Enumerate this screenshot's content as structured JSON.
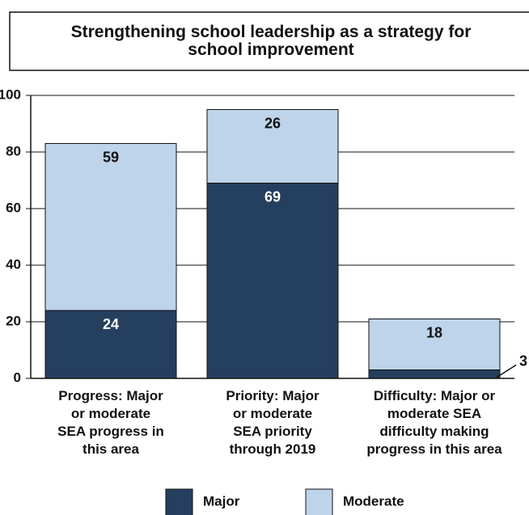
{
  "chart_data": {
    "type": "stacked_bar",
    "title": "Strengthening school leadership as a strategy for\nschool improvement",
    "categories": [
      "Progress: Major\nor moderate\nSEA progress in\nthis area",
      "Priority: Major\nor moderate\nSEA priority\nthrough 2019",
      "Difficulty: Major or\nmoderate SEA\ndifficulty making\nprogress in this area"
    ],
    "series": [
      {
        "name": "Major",
        "color": "#253f5e",
        "values": [
          24,
          69,
          3
        ]
      },
      {
        "name": "Moderate",
        "color": "#bdd4eb",
        "values": [
          59,
          26,
          18
        ]
      }
    ],
    "ylim": [
      0,
      100
    ],
    "yticks": [
      0,
      20,
      40,
      60,
      80,
      100
    ],
    "grid": true,
    "legend": "bottom"
  }
}
